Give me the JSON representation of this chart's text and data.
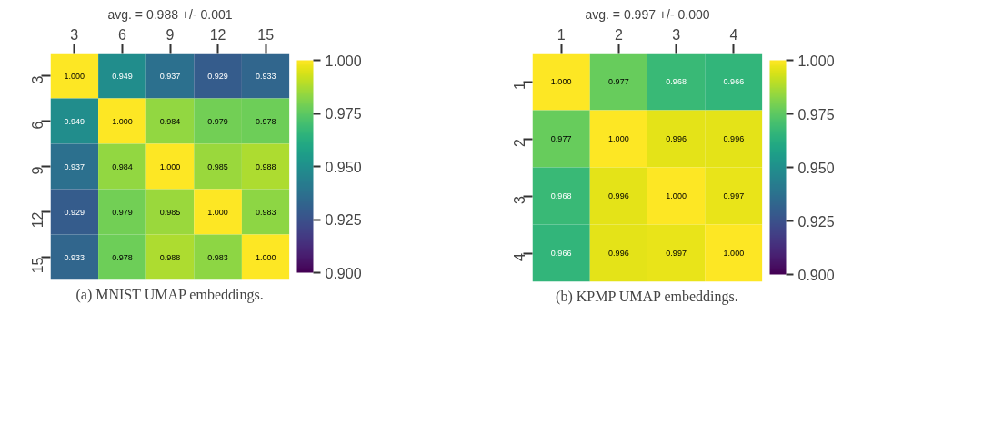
{
  "chart_data": [
    {
      "type": "heatmap",
      "title": "avg. = 0.988 +/- 0.001",
      "categories": [
        "3",
        "6",
        "9",
        "12",
        "15"
      ],
      "y_categories": [
        "3",
        "6",
        "9",
        "12",
        "15"
      ],
      "cells": [
        [
          1.0,
          0.949,
          0.937,
          0.929,
          0.933
        ],
        [
          0.949,
          1.0,
          0.984,
          0.979,
          0.978
        ],
        [
          0.937,
          0.984,
          1.0,
          0.985,
          0.988
        ],
        [
          0.929,
          0.979,
          0.985,
          1.0,
          0.983
        ],
        [
          0.933,
          0.978,
          0.988,
          0.983,
          1.0
        ]
      ],
      "cell_labels": [
        [
          "1.000",
          "0.949",
          "0.937",
          "0.929",
          "0.933"
        ],
        [
          "0.949",
          "1.000",
          "0.984",
          "0.979",
          "0.978"
        ],
        [
          "0.937",
          "0.984",
          "1.000",
          "0.985",
          "0.988"
        ],
        [
          "0.929",
          "0.979",
          "0.985",
          "1.000",
          "0.983"
        ],
        [
          "0.933",
          "0.978",
          "0.988",
          "0.983",
          "1.000"
        ]
      ],
      "clim": [
        0.9,
        1.0
      ],
      "cticks": [
        {
          "value": 0.9,
          "label": "0.900"
        },
        {
          "value": 0.925,
          "label": "0.925"
        },
        {
          "value": 0.95,
          "label": "0.950"
        },
        {
          "value": 0.975,
          "label": "0.975"
        },
        {
          "value": 1.0,
          "label": "1.000"
        }
      ],
      "annotations": [
        "(a) MNIST UMAP embeddings."
      ]
    },
    {
      "type": "heatmap",
      "title": "avg. = 0.997 +/- 0.000",
      "categories": [
        "1",
        "2",
        "3",
        "4"
      ],
      "y_categories": [
        "1",
        "2",
        "3",
        "4"
      ],
      "cells": [
        [
          1.0,
          0.977,
          0.968,
          0.966
        ],
        [
          0.977,
          1.0,
          0.996,
          0.996
        ],
        [
          0.968,
          0.996,
          1.0,
          0.997
        ],
        [
          0.966,
          0.996,
          0.997,
          1.0
        ]
      ],
      "cell_labels": [
        [
          "1.000",
          "0.977",
          "0.968",
          "0.966"
        ],
        [
          "0.977",
          "1.000",
          "0.996",
          "0.996"
        ],
        [
          "0.968",
          "0.996",
          "1.000",
          "0.997"
        ],
        [
          "0.966",
          "0.996",
          "0.997",
          "1.000"
        ]
      ],
      "clim": [
        0.9,
        1.0
      ],
      "cticks": [
        {
          "value": 0.9,
          "label": "0.900"
        },
        {
          "value": 0.925,
          "label": "0.925"
        },
        {
          "value": 0.95,
          "label": "0.950"
        },
        {
          "value": 0.975,
          "label": "0.975"
        },
        {
          "value": 1.0,
          "label": "1.000"
        }
      ],
      "annotations": [
        "(b) KPMP UMAP embeddings."
      ]
    }
  ]
}
